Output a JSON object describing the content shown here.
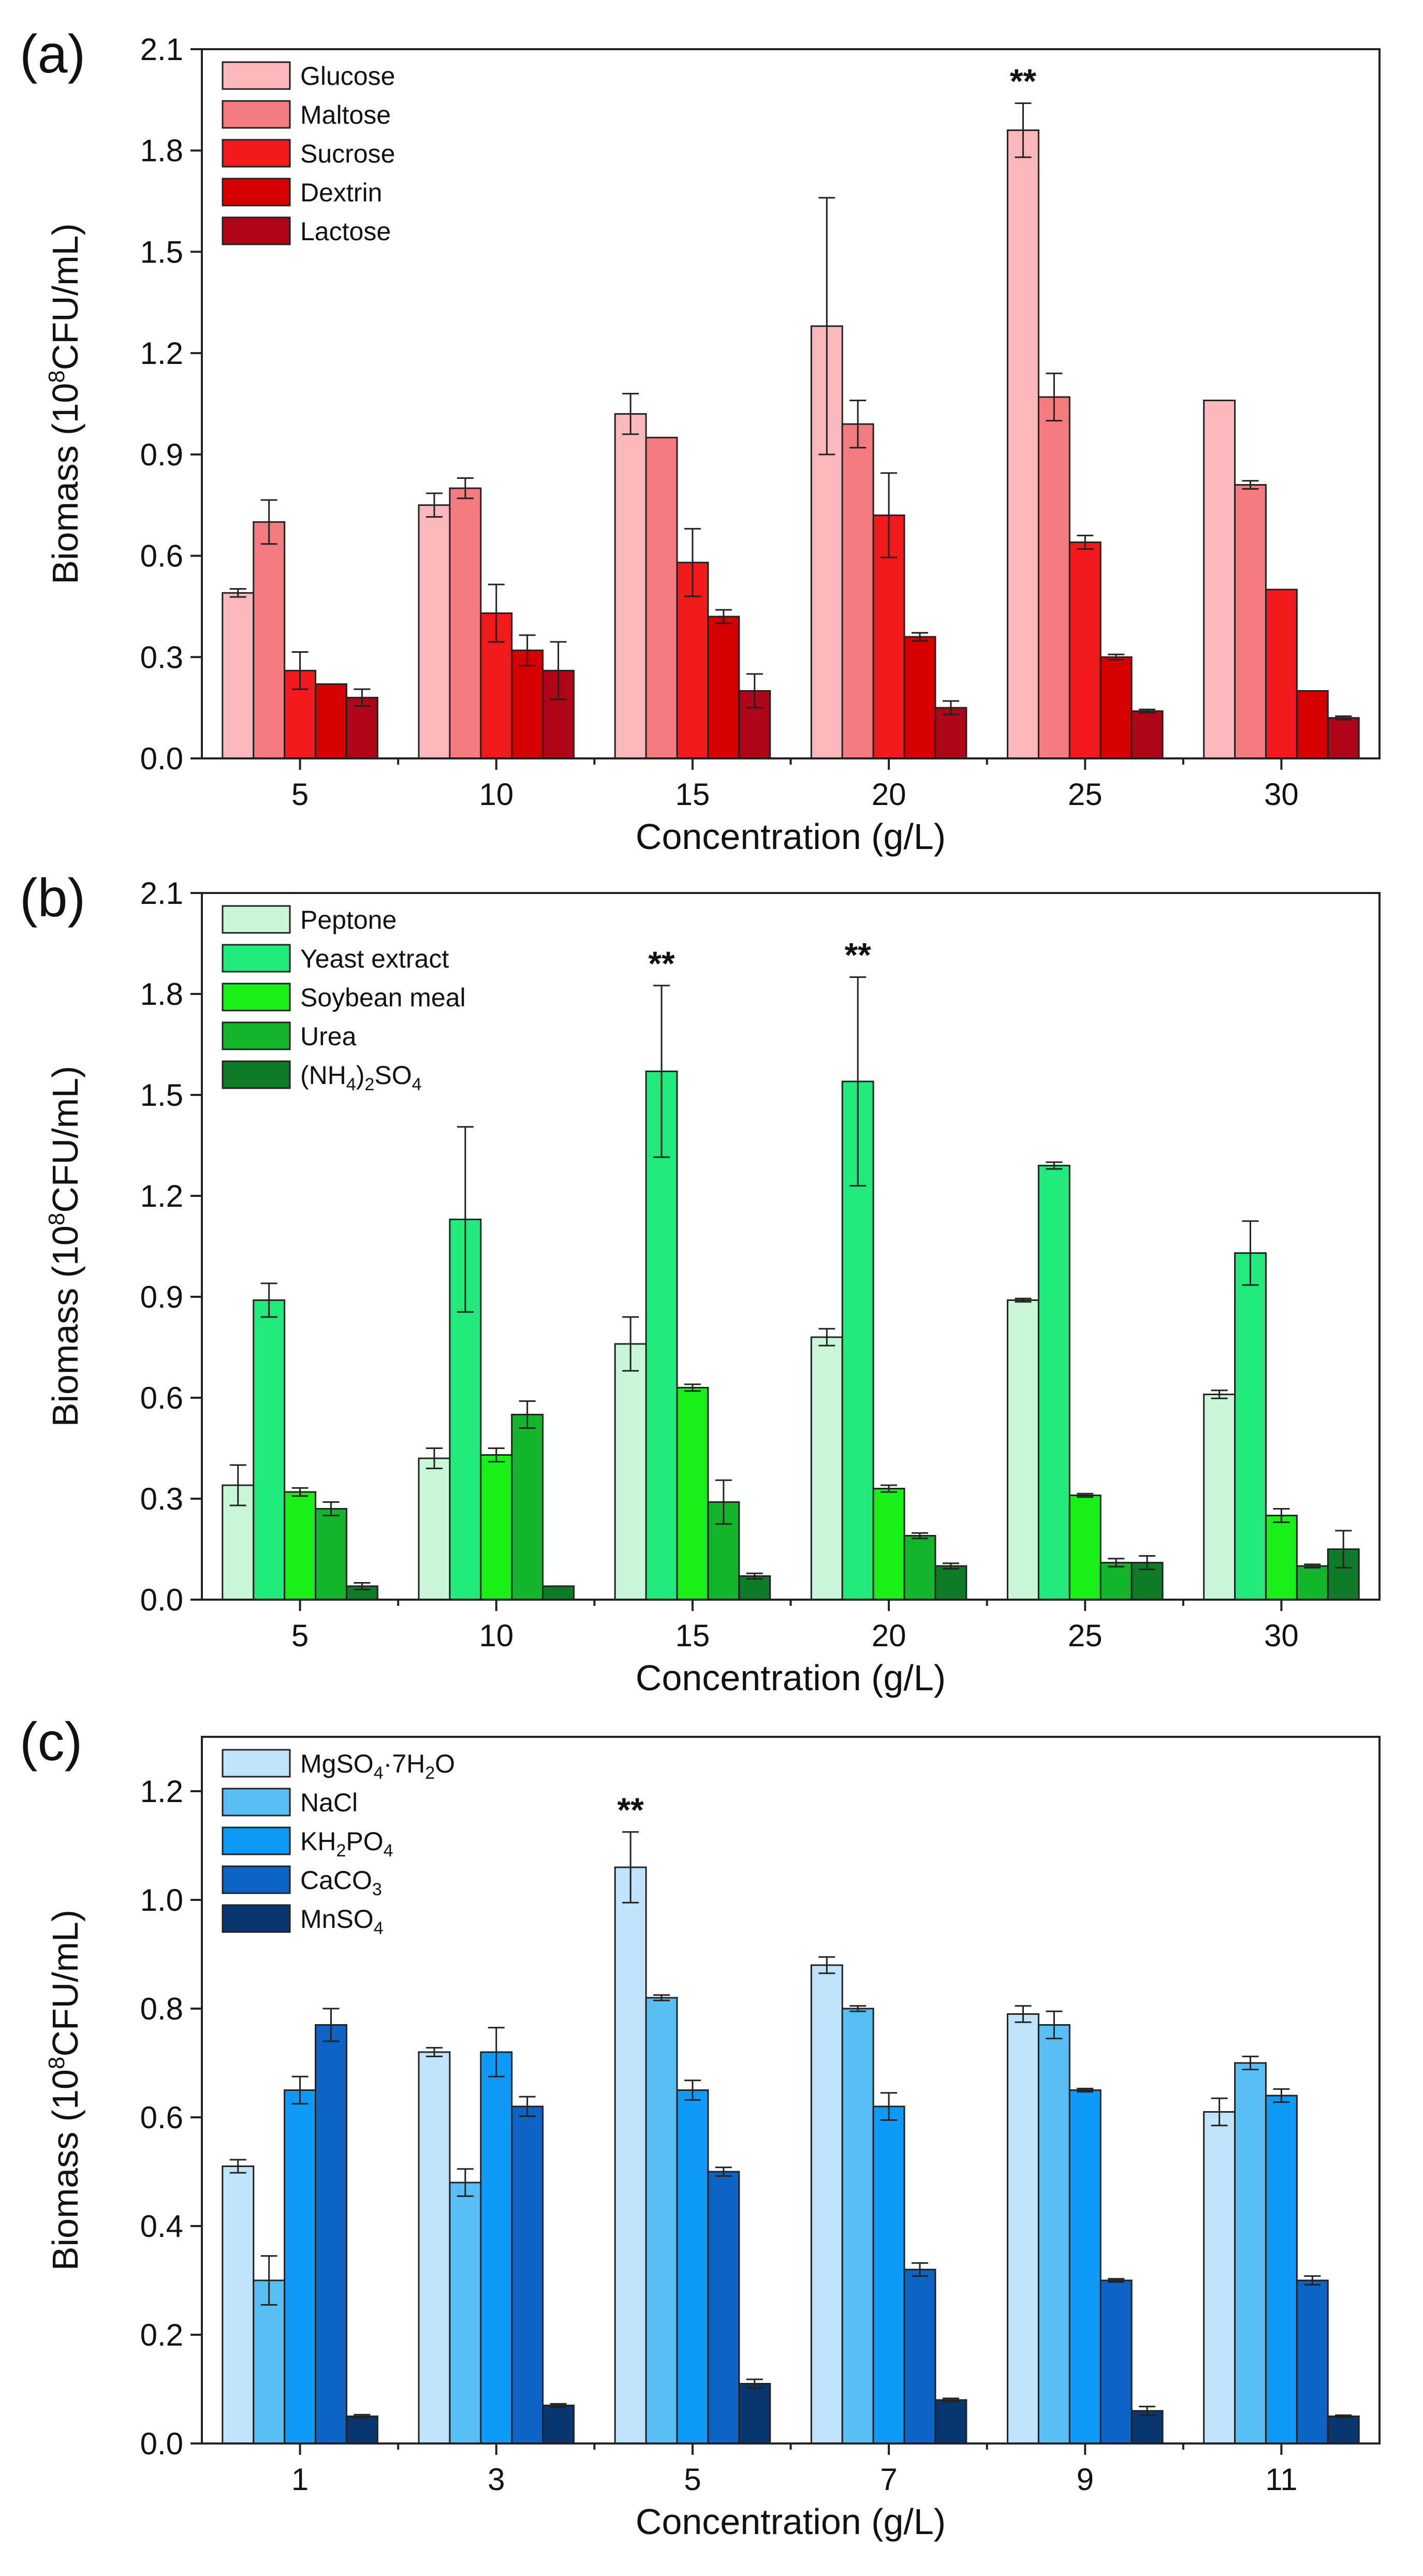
{
  "chart_data": [
    {
      "type": "bar",
      "panel_label": "(a)",
      "categories": [
        "5",
        "10",
        "15",
        "20",
        "25",
        "30"
      ],
      "xlabel": "Concentration (g/L)",
      "ylabel_main": "Biomass",
      "ylabel_unit": "(10",
      "ylabel_exp": "8",
      "ylabel_tail": "CFU/mL)",
      "ylim": [
        0,
        2.1
      ],
      "yticks": [
        "0.0",
        "0.3",
        "0.6",
        "0.9",
        "1.2",
        "1.5",
        "1.8",
        "2.1"
      ],
      "legend_position": "top-left",
      "series": [
        {
          "name": "Glucose",
          "color": "#FBB8BC",
          "values": [
            0.49,
            0.75,
            1.02,
            1.28,
            1.86,
            1.06
          ],
          "errors": [
            0.012,
            0.035,
            0.06,
            0.38,
            0.08,
            0.0
          ]
        },
        {
          "name": "Maltose",
          "color": "#F47B7F",
          "values": [
            0.7,
            0.8,
            0.95,
            0.99,
            1.07,
            0.81
          ],
          "errors": [
            0.065,
            0.03,
            0.0,
            0.07,
            0.07,
            0.012
          ]
        },
        {
          "name": "Sucrose",
          "color": "#F01A1C",
          "values": [
            0.26,
            0.43,
            0.58,
            0.72,
            0.64,
            0.5
          ],
          "errors": [
            0.055,
            0.085,
            0.1,
            0.125,
            0.02,
            0.0
          ]
        },
        {
          "name": "Dextrin",
          "color": "#D70000",
          "values": [
            0.22,
            0.32,
            0.42,
            0.36,
            0.3,
            0.2
          ],
          "errors": [
            0.0,
            0.045,
            0.02,
            0.012,
            0.008,
            0.0
          ]
        },
        {
          "name": "Lactose",
          "color": "#AE0618",
          "values": [
            0.18,
            0.26,
            0.2,
            0.15,
            0.14,
            0.12
          ],
          "errors": [
            0.025,
            0.085,
            0.05,
            0.02,
            0.005,
            0.005
          ]
        }
      ],
      "annotations": [
        {
          "text": "**",
          "category": "25"
        }
      ]
    },
    {
      "type": "bar",
      "panel_label": "(b)",
      "categories": [
        "5",
        "10",
        "15",
        "20",
        "25",
        "30"
      ],
      "xlabel": "Concentration (g/L)",
      "ylabel_main": "Biomass",
      "ylabel_unit": "(10",
      "ylabel_exp": "8",
      "ylabel_tail": "CFU/mL)",
      "ylim": [
        0,
        2.1
      ],
      "yticks": [
        "0.0",
        "0.3",
        "0.6",
        "0.9",
        "1.2",
        "1.5",
        "1.8",
        "2.1"
      ],
      "legend_position": "top-left",
      "series": [
        {
          "name": "Peptone",
          "color": "#C9F7D7",
          "values": [
            0.34,
            0.42,
            0.76,
            0.78,
            0.89,
            0.61
          ],
          "errors": [
            0.06,
            0.03,
            0.08,
            0.025,
            0.005,
            0.012
          ]
        },
        {
          "name": "Yeast extract",
          "color": "#21E97B",
          "values": [
            0.89,
            1.13,
            1.57,
            1.54,
            1.29,
            1.03
          ],
          "errors": [
            0.05,
            0.275,
            0.255,
            0.31,
            0.01,
            0.095
          ]
        },
        {
          "name": "Soybean meal",
          "color": "#19F01A",
          "values": [
            0.32,
            0.43,
            0.63,
            0.33,
            0.31,
            0.25
          ],
          "errors": [
            0.012,
            0.02,
            0.01,
            0.01,
            0.005,
            0.02
          ]
        },
        {
          "name": "Urea",
          "color": "#14B52D",
          "values": [
            0.27,
            0.55,
            0.29,
            0.19,
            0.11,
            0.1
          ],
          "errors": [
            0.02,
            0.04,
            0.065,
            0.008,
            0.012,
            0.005
          ]
        },
        {
          "name": "(NH4)2SO4",
          "name_parts": [
            "(NH",
            "4",
            ")",
            "2",
            "SO",
            "4"
          ],
          "color": "#0F7A28",
          "values": [
            0.04,
            0.04,
            0.07,
            0.1,
            0.11,
            0.15
          ],
          "errors": [
            0.01,
            0.0,
            0.008,
            0.008,
            0.02,
            0.055
          ]
        }
      ],
      "annotations": [
        {
          "text": "**",
          "category": "15"
        },
        {
          "text": "**",
          "category": "20"
        }
      ]
    },
    {
      "type": "bar",
      "panel_label": "(c)",
      "categories": [
        "1",
        "3",
        "5",
        "7",
        "9",
        "11"
      ],
      "xlabel": "Concentration (g/L)",
      "ylabel_main": "Biomass",
      "ylabel_unit": "(10",
      "ylabel_exp": "8",
      "ylabel_tail": "CFU/mL)",
      "ylim": [
        0,
        1.3
      ],
      "yticks": [
        "0.0",
        "0.2",
        "0.4",
        "0.6",
        "0.8",
        "1.0",
        "1.2"
      ],
      "legend_position": "top-left",
      "series": [
        {
          "name": "MgSO4·7H2O",
          "name_parts": [
            "MgSO",
            "4",
            "·7H",
            "2",
            "O"
          ],
          "color": "#BEE3FA",
          "values": [
            0.51,
            0.72,
            1.06,
            0.88,
            0.79,
            0.61
          ],
          "errors": [
            0.012,
            0.008,
            0.065,
            0.015,
            0.015,
            0.025
          ]
        },
        {
          "name": "NaCl",
          "color": "#58BEF3",
          "values": [
            0.3,
            0.48,
            0.82,
            0.8,
            0.77,
            0.7
          ],
          "errors": [
            0.045,
            0.025,
            0.005,
            0.005,
            0.025,
            0.012
          ]
        },
        {
          "name": "KH2PO4",
          "name_parts": [
            "KH",
            "2",
            "PO",
            "4"
          ],
          "color": "#0E9AF6",
          "values": [
            0.65,
            0.72,
            0.65,
            0.62,
            0.65,
            0.64
          ],
          "errors": [
            0.025,
            0.045,
            0.018,
            0.025,
            0.003,
            0.012
          ]
        },
        {
          "name": "CaCO3",
          "name_parts": [
            "CaCO",
            "3"
          ],
          "color": "#0D64C4",
          "values": [
            0.77,
            0.62,
            0.5,
            0.32,
            0.3,
            0.3
          ],
          "errors": [
            0.03,
            0.018,
            0.008,
            0.012,
            0.003,
            0.008
          ]
        },
        {
          "name": "MnSO4",
          "name_parts": [
            "MnSO",
            "4"
          ],
          "color": "#0A366F",
          "values": [
            0.05,
            0.07,
            0.11,
            0.08,
            0.06,
            0.05
          ],
          "errors": [
            0.003,
            0.003,
            0.008,
            0.003,
            0.008,
            0.002
          ]
        }
      ],
      "annotations": [
        {
          "text": "**",
          "category": "5"
        }
      ]
    }
  ]
}
